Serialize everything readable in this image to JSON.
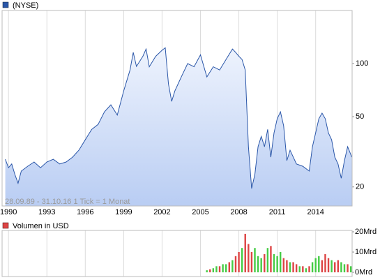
{
  "chart_data": [
    {
      "type": "line",
      "log_y": true,
      "grid": true,
      "note": "28.09.89 - 31.10.16   1 Tick = 1 Monat",
      "series": [
        {
          "name": "(NYSE)",
          "color": "#2a56a8",
          "x": [
            1989.75,
            1990,
            1990.25,
            1990.5,
            1990.75,
            1991,
            1991.5,
            1992,
            1992.5,
            1993,
            1993.5,
            1994,
            1994.5,
            1995,
            1995.5,
            1996,
            1996.5,
            1997,
            1997.5,
            1998,
            1998.5,
            1999,
            1999.5,
            1999.75,
            2000,
            2000.5,
            2000.75,
            2001,
            2001.5,
            2002,
            2002.25,
            2002.5,
            2002.75,
            2003,
            2003.5,
            2004,
            2004.5,
            2005,
            2005.5,
            2006,
            2006.5,
            2007,
            2007.5,
            2007.75,
            2008,
            2008.25,
            2008.5,
            2008.75,
            2009,
            2009.25,
            2009.5,
            2009.75,
            2010,
            2010.25,
            2010.5,
            2010.75,
            2011,
            2011.25,
            2011.5,
            2011.75,
            2012,
            2012.5,
            2013,
            2013.5,
            2013.75,
            2014,
            2014.25,
            2014.5,
            2014.75,
            2015,
            2015.25,
            2015.5,
            2015.75,
            2016,
            2016.25,
            2016.5,
            2016.83
          ],
          "values": [
            28.7,
            25.7,
            27,
            23.5,
            21,
            24.6,
            26.2,
            27.7,
            25.7,
            27.7,
            28.7,
            27,
            27.7,
            29.5,
            32.3,
            37,
            42.4,
            45.2,
            53.3,
            58.4,
            51.1,
            70,
            92,
            115.7,
            96.4,
            110,
            121,
            96,
            110,
            119,
            123,
            76.7,
            61.1,
            70,
            84,
            100,
            96,
            112,
            84,
            96,
            92,
            105.6,
            121,
            115.7,
            110,
            105.6,
            92,
            33.8,
            19.6,
            23.5,
            33.8,
            38.7,
            33.8,
            42.4,
            29.5,
            40.5,
            48.7,
            53.3,
            44.4,
            28.2,
            32.3,
            27,
            26.2,
            24.6,
            33.8,
            40.5,
            48.7,
            52.4,
            48.7,
            40.5,
            37,
            29.5,
            27,
            22.4,
            28.2,
            33.8,
            29.5
          ]
        }
      ],
      "xlim": [
        1989.5,
        2016.85
      ],
      "xticks": [
        1990,
        1993,
        1996,
        1999,
        2002,
        2005,
        2008,
        2011,
        2014
      ],
      "ylim": [
        15.6,
        200
      ],
      "yticks": [
        20,
        50,
        100
      ]
    },
    {
      "type": "bar",
      "grid": true,
      "series": [
        {
          "name": "Volumen in USD",
          "color": "#d44",
          "x": [
            2005.5,
            2005.75,
            2006,
            2006.25,
            2006.5,
            2006.75,
            2007,
            2007.25,
            2007.5,
            2007.75,
            2008,
            2008.25,
            2008.5,
            2008.75,
            2009,
            2009.25,
            2009.5,
            2009.75,
            2010,
            2010.25,
            2010.5,
            2010.75,
            2011,
            2011.25,
            2011.5,
            2011.75,
            2012,
            2012.25,
            2012.5,
            2012.75,
            2013,
            2013.25,
            2013.5,
            2013.75,
            2014,
            2014.25,
            2014.5,
            2014.75,
            2015,
            2015.25,
            2015.5,
            2015.75,
            2016,
            2016.25,
            2016.5,
            2016.75
          ],
          "values": [
            1,
            1.5,
            2,
            3,
            3,
            4,
            4,
            5,
            6,
            8,
            10,
            12,
            19,
            14,
            10,
            12,
            8,
            7,
            9,
            12,
            13,
            9,
            8,
            10,
            7,
            6,
            5,
            5,
            4,
            3,
            3,
            2,
            3,
            5,
            7,
            8,
            6,
            9,
            7,
            6,
            5,
            6,
            5,
            4,
            4,
            3
          ],
          "colors": [
            "#4c4",
            "#d44",
            "#4c4",
            "#4c4",
            "#d44",
            "#4c4",
            "#4c4",
            "#d44",
            "#4c4",
            "#d44",
            "#d44",
            "#4c4",
            "#d44",
            "#d44",
            "#d44",
            "#4c4",
            "#4c4",
            "#4c4",
            "#d44",
            "#4c4",
            "#d44",
            "#4c4",
            "#4c4",
            "#4c4",
            "#d44",
            "#d44",
            "#4c4",
            "#d44",
            "#d44",
            "#4c4",
            "#d44",
            "#4c4",
            "#d44",
            "#4c4",
            "#4c4",
            "#4c4",
            "#d44",
            "#d44",
            "#d44",
            "#4c4",
            "#d44",
            "#d44",
            "#4c4",
            "#4c4",
            "#d44",
            "#4c4"
          ]
        }
      ],
      "xlim": [
        1989.5,
        2016.85
      ],
      "ylim": [
        0,
        20
      ],
      "yticks": [
        {
          "value": 0,
          "label": "0Mrd"
        },
        {
          "value": 10,
          "label": "10Mrd"
        },
        {
          "value": 20,
          "label": "20Mrd"
        }
      ]
    }
  ]
}
